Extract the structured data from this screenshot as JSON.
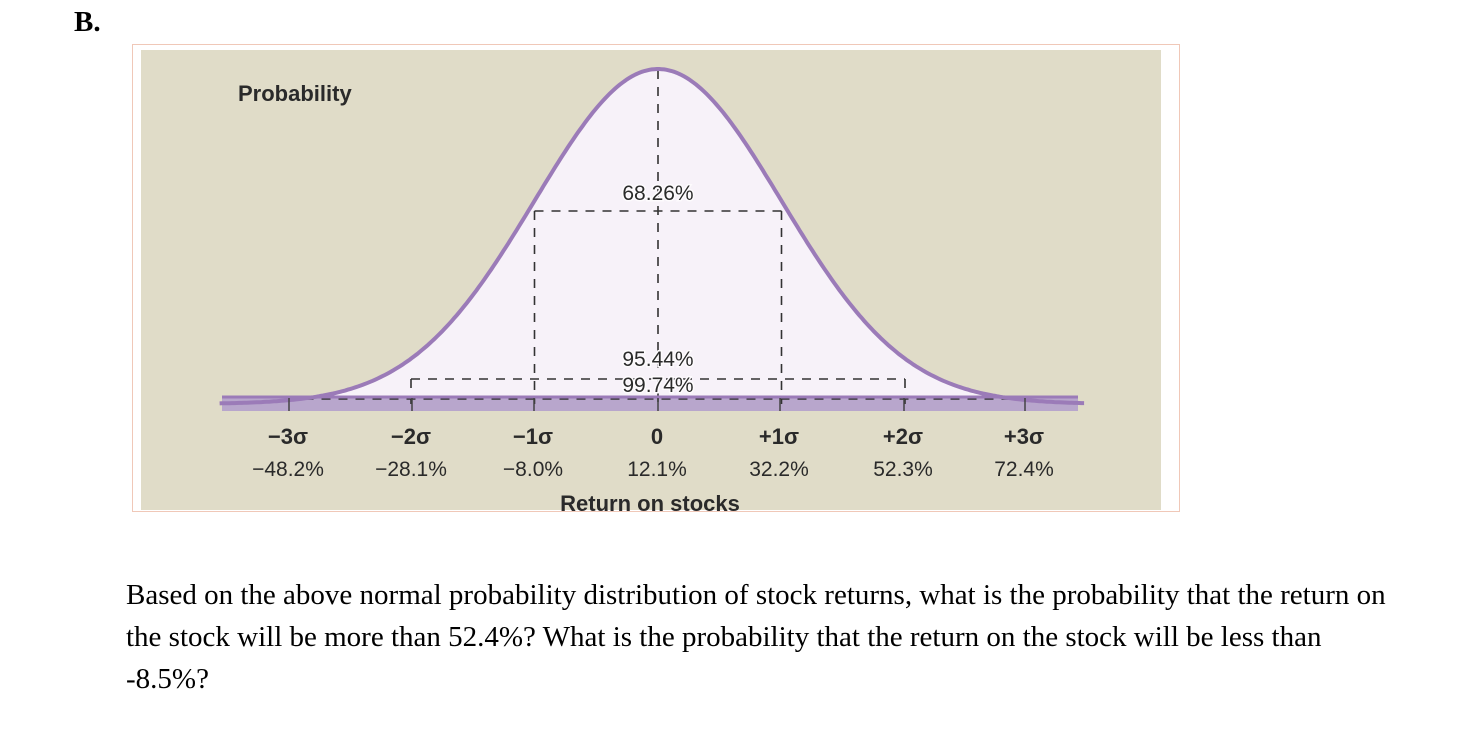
{
  "section": {
    "label": "B."
  },
  "chart_data": {
    "type": "line",
    "title": "",
    "ylabel": "Probability",
    "xlabel": "Return on stocks",
    "distribution": "normal",
    "mean": 12.1,
    "sd": 20.1,
    "x_sigma_ticks": [
      "−3σ",
      "−2σ",
      "−1σ",
      "0",
      "+1σ",
      "+2σ",
      "+3σ"
    ],
    "x_return_ticks": [
      "−48.2%",
      "−28.1%",
      "−8.0%",
      "12.1%",
      "32.2%",
      "52.3%",
      "72.4%"
    ],
    "x_values": [
      -48.2,
      -28.1,
      -8.0,
      12.1,
      32.2,
      52.3,
      72.4
    ],
    "intervals": [
      {
        "label": "68.26%",
        "range_sigma": [
          -1,
          1
        ]
      },
      {
        "label": "95.44%",
        "range_sigma": [
          -2,
          2
        ]
      },
      {
        "label": "99.74%",
        "range_sigma": [
          -3,
          3
        ]
      }
    ],
    "colors": {
      "curve": "#9b7bb8",
      "fill": "#f7f2f9",
      "axis_band": "#b8a6cc",
      "background": "#e0dcc8"
    }
  },
  "question": {
    "text": "Based on the above normal probability distribution of stock returns, what is the probability that the return on the stock will be more than 52.4%? What is the probability that the return on the stock will be less than -8.5%?"
  }
}
